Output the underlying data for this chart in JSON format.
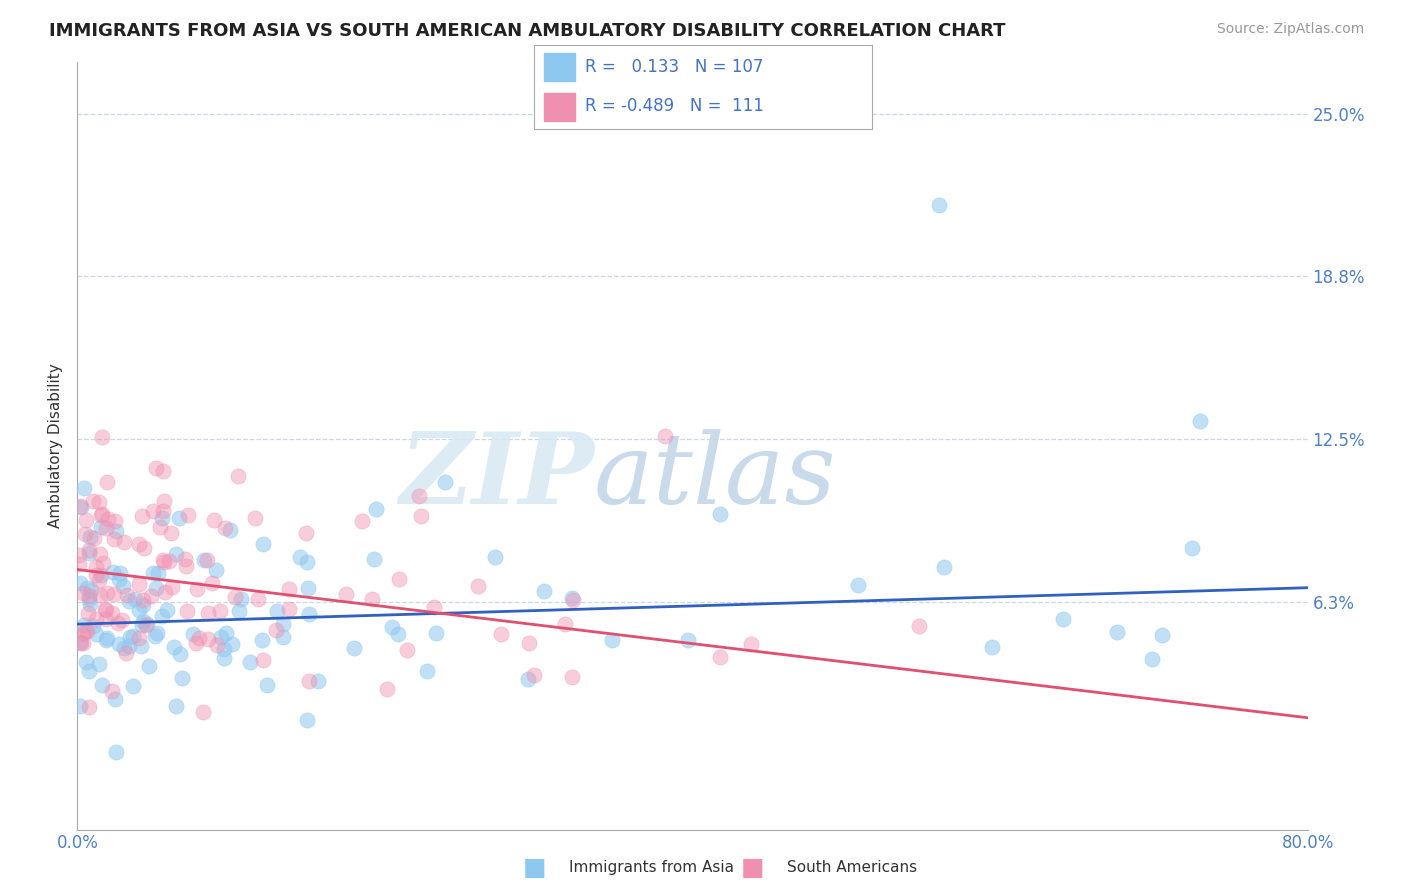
{
  "title": "IMMIGRANTS FROM ASIA VS SOUTH AMERICAN AMBULATORY DISABILITY CORRELATION CHART",
  "source": "Source: ZipAtlas.com",
  "ylabel": "Ambulatory Disability",
  "xlim": [
    0,
    0.8
  ],
  "ylim": [
    -0.025,
    0.27
  ],
  "ytick_vals": [
    0.0,
    0.0625,
    0.125,
    0.188,
    0.25
  ],
  "ytick_labels": [
    "",
    "6.3%",
    "12.5%",
    "18.8%",
    "25.0%"
  ],
  "xtick_vals": [
    0.0,
    0.1,
    0.2,
    0.3,
    0.4,
    0.5,
    0.6,
    0.7,
    0.8
  ],
  "xtick_labels": [
    "0.0%",
    "",
    "",
    "",
    "",
    "",
    "",
    "",
    "80.0%"
  ],
  "legend1_r": "0.133",
  "legend1_n": "107",
  "legend2_r": "-0.489",
  "legend2_n": "111",
  "color_asia": "#8EC8F0",
  "color_south": "#F090B0",
  "color_line_asia": "#3060C0",
  "color_line_south": "#E05070",
  "bg_color": "#FFFFFF",
  "grid_color": "#C8D8E8",
  "asia_line_start_y": 0.054,
  "asia_line_end_y": 0.068,
  "south_line_start_y": 0.075,
  "south_line_end_y": 0.018
}
